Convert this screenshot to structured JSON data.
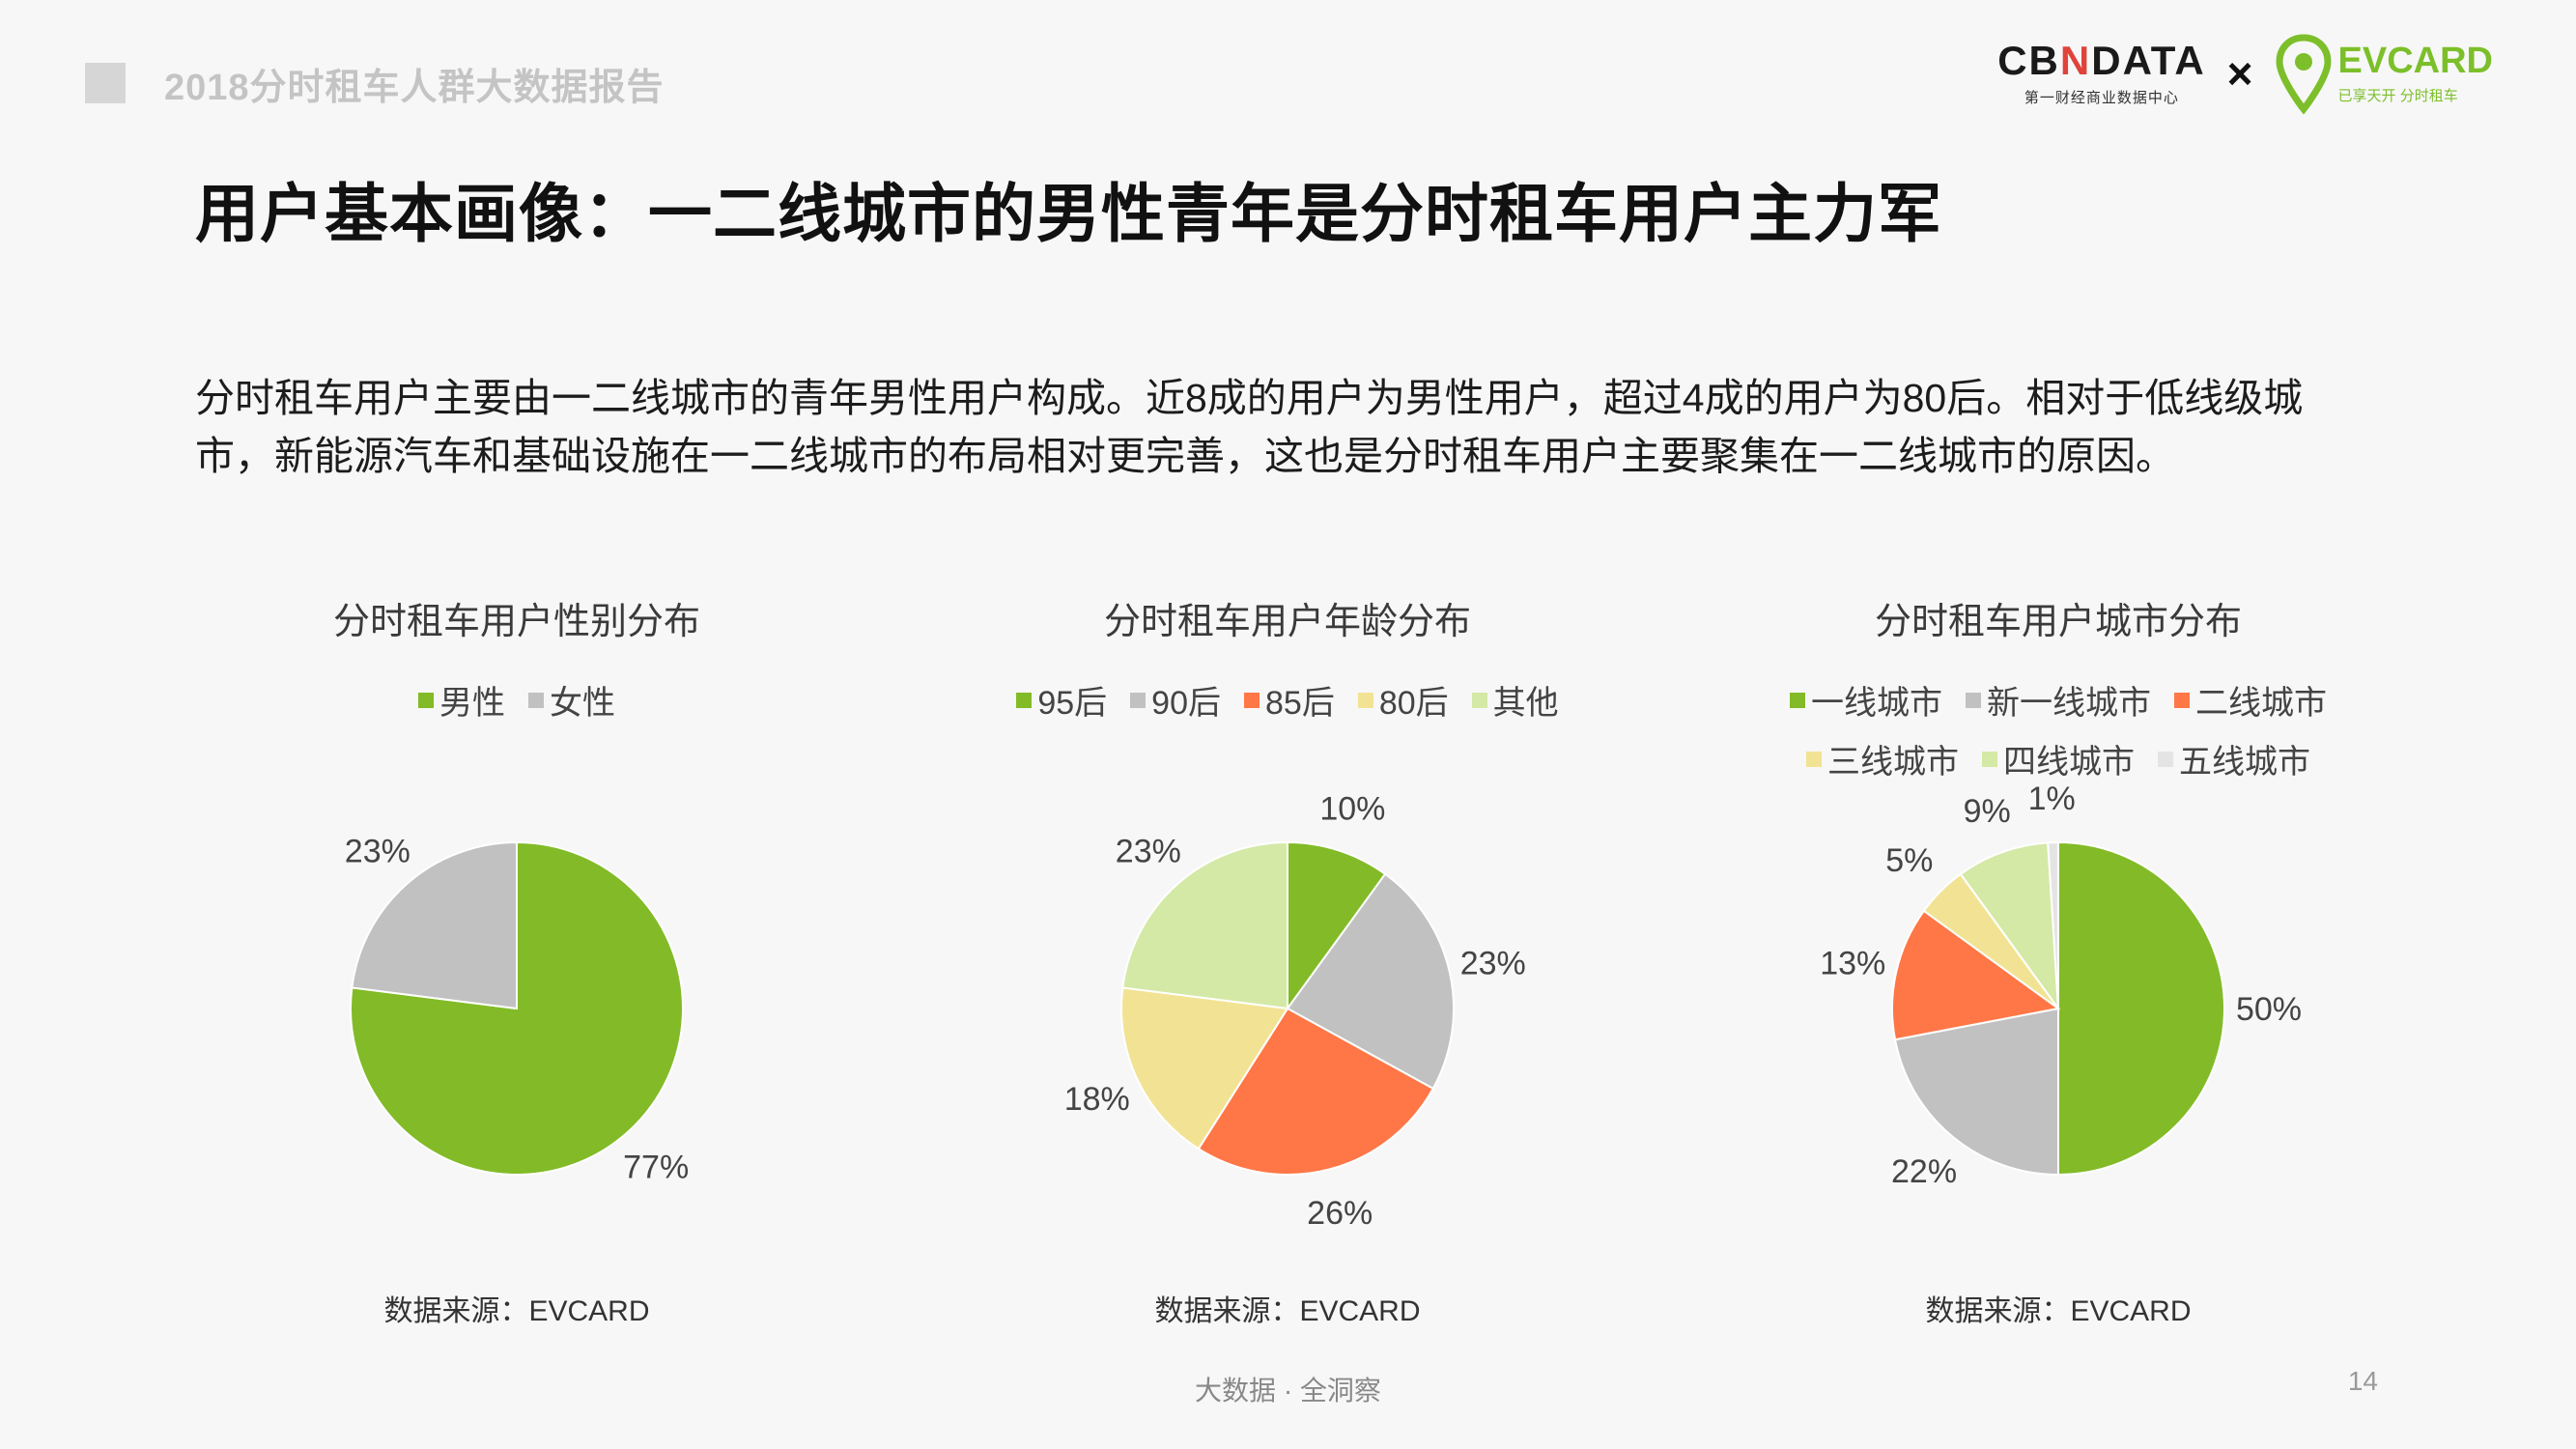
{
  "header": {
    "report_title": "2018分时租车人群大数据报告",
    "logo_cbn": "CBNDATA",
    "logo_cbn_sub": "第一财经商业数据中心",
    "logo_times": "×",
    "logo_ev": "EVCARD",
    "logo_ev_sub": "已享天开 分时租车"
  },
  "headline": "用户基本画像：一二线城市的男性青年是分时租车用户主力军",
  "paragraph": "分时租车用户主要由一二线城市的青年男性用户构成。近8成的用户为男性用户，超过4成的用户为80后。相对于低线级城市，新能源汽车和基础设施在一二线城市的布局相对更完善，这也是分时租车用户主要聚集在一二线城市的原因。",
  "footer": {
    "slogan": "大数据 · 全洞察",
    "page": "14"
  },
  "chart_data": [
    {
      "type": "pie",
      "title": "分时租车用户性别分布",
      "source": "数据来源：EVCARD",
      "legend": "top",
      "slices": [
        {
          "name": "男性",
          "value": 77,
          "label": "77%",
          "color": "#82bb27"
        },
        {
          "name": "女性",
          "value": 23,
          "label": "23%",
          "color": "#c1c1c1"
        }
      ]
    },
    {
      "type": "pie",
      "title": "分时租车用户年龄分布",
      "source": "数据来源：EVCARD",
      "legend": "top",
      "slices": [
        {
          "name": "95后",
          "value": 10,
          "label": "10%",
          "color": "#82bb27"
        },
        {
          "name": "90后",
          "value": 23,
          "label": "23%",
          "color": "#c1c1c1"
        },
        {
          "name": "85后",
          "value": 26,
          "label": "26%",
          "color": "#ff7747"
        },
        {
          "name": "80后",
          "value": 18,
          "label": "18%",
          "color": "#f2e394"
        },
        {
          "name": "其他",
          "value": 23,
          "label": "23%",
          "color": "#d4e9a6"
        }
      ]
    },
    {
      "type": "pie",
      "title": "分时租车用户城市分布",
      "source": "数据来源：EVCARD",
      "legend": "top",
      "slices": [
        {
          "name": "一线城市",
          "value": 50,
          "label": "50%",
          "color": "#82bb27"
        },
        {
          "name": "新一线城市",
          "value": 22,
          "label": "22%",
          "color": "#c1c1c1"
        },
        {
          "name": "二线城市",
          "value": 13,
          "label": "13%",
          "color": "#ff7747"
        },
        {
          "name": "三线城市",
          "value": 5,
          "label": "5%",
          "color": "#f2e394"
        },
        {
          "name": "四线城市",
          "value": 9,
          "label": "9%",
          "color": "#d4e9a6"
        },
        {
          "name": "五线城市",
          "value": 1,
          "label": "1%",
          "color": "#e4e4e4"
        }
      ]
    }
  ]
}
